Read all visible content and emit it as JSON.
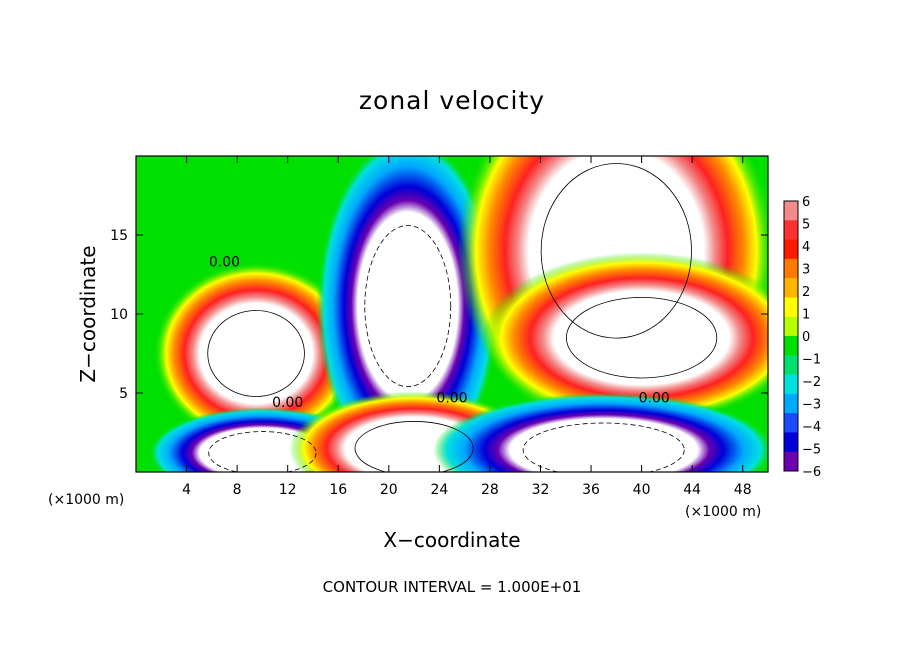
{
  "chart_data": {
    "type": "heatmap",
    "title": "zonal velocity",
    "xlabel": "X−coordinate",
    "ylabel": "Z−coordinate",
    "x_unit_left": "(×1000 m)",
    "x_unit_right": "(×1000 m)",
    "footer": "CONTOUR INTERVAL = 1.000E+01",
    "xlim": [
      0,
      50
    ],
    "ylim": [
      0,
      20
    ],
    "xticks": [
      4,
      8,
      12,
      16,
      20,
      24,
      28,
      32,
      36,
      40,
      44,
      48
    ],
    "yticks": [
      5,
      10,
      15
    ],
    "colorbar": {
      "levels": [
        6,
        5,
        4,
        3,
        2,
        1,
        0,
        -1,
        -2,
        -3,
        -4,
        -5,
        -6
      ],
      "colors": [
        "#f28a8a",
        "#ff3030",
        "#ff1a00",
        "#ff7a00",
        "#ffb400",
        "#ffff00",
        "#b8ff00",
        "#00e000",
        "#00e070",
        "#00e0e0",
        "#00a8ff",
        "#1a4cff",
        "#0000d8",
        "#6a00b0"
      ]
    },
    "contour_labels": [
      "0.00",
      "0.00",
      "0.00",
      "0.00"
    ],
    "saturated_regions": [
      {
        "sign": "positive",
        "cx": 9.5,
        "cz": 7.5,
        "rx": 4.5,
        "rz": 3.2
      },
      {
        "sign": "negative",
        "cx": 21.5,
        "cz": 10.5,
        "rx": 4.0,
        "rz": 6.0
      },
      {
        "sign": "positive",
        "cx": 38,
        "cz": 14,
        "rx": 7.0,
        "rz": 6.5
      },
      {
        "sign": "positive",
        "cx": 40,
        "cz": 8.5,
        "rx": 7.0,
        "rz": 3.0
      },
      {
        "sign": "negative",
        "cx": 10,
        "cz": 1.2,
        "rx": 5.0,
        "rz": 1.6
      },
      {
        "sign": "positive",
        "cx": 22,
        "cz": 1.5,
        "rx": 5.5,
        "rz": 2.0
      },
      {
        "sign": "negative",
        "cx": 37,
        "cz": 1.4,
        "rx": 7.5,
        "rz": 2.0
      }
    ]
  }
}
